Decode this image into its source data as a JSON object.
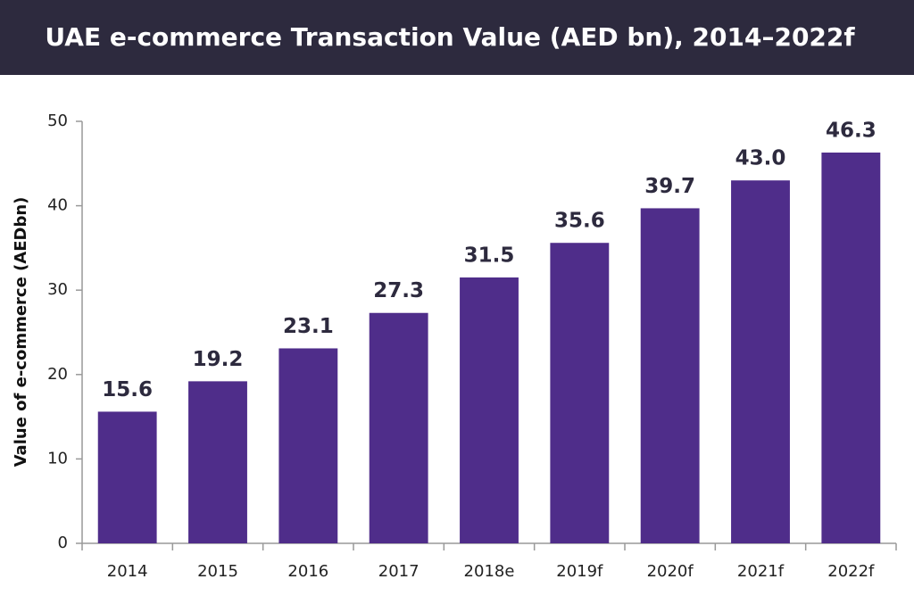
{
  "chart_data": {
    "type": "bar",
    "title": "UAE e-commerce Transaction Value (AED bn), 2014–2022f",
    "y_label": "Value of e-commerce (AEDbn)",
    "categories": [
      "2014",
      "2015",
      "2016",
      "2017",
      "2018e",
      "2019f",
      "2020f",
      "2021f",
      "2022f"
    ],
    "values": [
      15.6,
      19.2,
      23.1,
      27.3,
      31.5,
      35.6,
      39.7,
      43.0,
      46.3
    ],
    "value_labels": [
      "15.6",
      "19.2",
      "23.1",
      "27.3",
      "31.5",
      "35.6",
      "39.7",
      "43.0",
      "46.3"
    ],
    "color": "#4f2d8a",
    "ylim": [
      0,
      50
    ],
    "yticks": [
      0,
      10,
      20,
      30,
      40,
      50
    ],
    "grid": false
  }
}
